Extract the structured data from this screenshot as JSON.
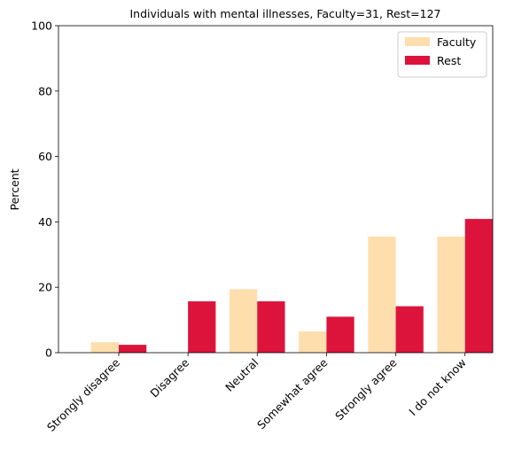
{
  "chart_data": {
    "type": "bar",
    "title": "Individuals with mental illnesses, Faculty=31, Rest=127",
    "xlabel": "",
    "ylabel": "Percent",
    "ylim": [
      0,
      100
    ],
    "yticks": [
      0,
      20,
      40,
      60,
      80,
      100
    ],
    "categories": [
      "Strongly disagree",
      "Disagree",
      "Neutral",
      "Somewhat agree",
      "Strongly agree",
      "I do not know"
    ],
    "series": [
      {
        "name": "Faculty",
        "color": "#FFDEAD",
        "values": [
          3.2,
          0.0,
          19.4,
          6.5,
          35.5,
          35.5
        ]
      },
      {
        "name": "Rest",
        "color": "#DC143C",
        "values": [
          2.4,
          15.7,
          15.7,
          11.0,
          14.2,
          40.9
        ]
      }
    ],
    "legend_position": "top-right",
    "grid": false
  }
}
